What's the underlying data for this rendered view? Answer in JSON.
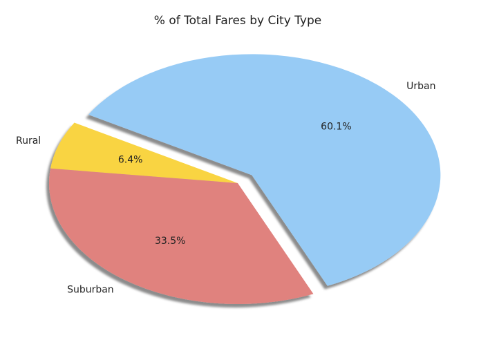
{
  "chart_data": {
    "type": "pie",
    "title": "% of Total Fares by City Type",
    "categories": [
      "Rural",
      "Suburban",
      "Urban"
    ],
    "values": [
      6.4,
      33.5,
      60.1
    ],
    "value_labels": [
      "6.4%",
      "33.5%",
      "60.1%"
    ],
    "colors": [
      "#f9d442",
      "#e0827e",
      "#97cbf5"
    ],
    "explode": [
      0,
      0,
      0.1
    ],
    "startangle": 150,
    "shadow": true
  }
}
